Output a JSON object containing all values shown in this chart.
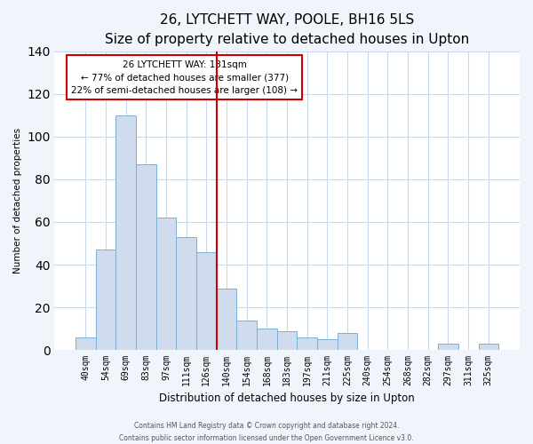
{
  "title": "26, LYTCHETT WAY, POOLE, BH16 5LS",
  "subtitle": "Size of property relative to detached houses in Upton",
  "xlabel": "Distribution of detached houses by size in Upton",
  "ylabel": "Number of detached properties",
  "bar_labels": [
    "40sqm",
    "54sqm",
    "69sqm",
    "83sqm",
    "97sqm",
    "111sqm",
    "126sqm",
    "140sqm",
    "154sqm",
    "168sqm",
    "183sqm",
    "197sqm",
    "211sqm",
    "225sqm",
    "240sqm",
    "254sqm",
    "268sqm",
    "282sqm",
    "297sqm",
    "311sqm",
    "325sqm"
  ],
  "bar_values": [
    6,
    47,
    110,
    87,
    62,
    53,
    46,
    29,
    14,
    10,
    9,
    6,
    5,
    8,
    0,
    0,
    0,
    0,
    3,
    0,
    3
  ],
  "bar_color": "#cfdcee",
  "bar_edge_color": "#7bafd4",
  "ylim": [
    0,
    140
  ],
  "yticks": [
    0,
    20,
    40,
    60,
    80,
    100,
    120,
    140
  ],
  "vline_position": 7.5,
  "vline_color": "#cc0000",
  "annotation_title": "26 LYTCHETT WAY: 131sqm",
  "annotation_line1": "← 77% of detached houses are smaller (377)",
  "annotation_line2": "22% of semi-detached houses are larger (108) →",
  "annotation_box_color": "#cc0000",
  "footer_line1": "Contains HM Land Registry data © Crown copyright and database right 2024.",
  "footer_line2": "Contains public sector information licensed under the Open Government Licence v3.0.",
  "bg_color": "#f0f4fb",
  "plot_bg_color": "#ffffff",
  "grid_color": "#c8d8eb",
  "title_fontsize": 11,
  "subtitle_fontsize": 9,
  "xlabel_fontsize": 8.5,
  "ylabel_fontsize": 7.5,
  "tick_fontsize": 7,
  "annotation_fontsize": 7.5,
  "footer_fontsize": 5.5
}
